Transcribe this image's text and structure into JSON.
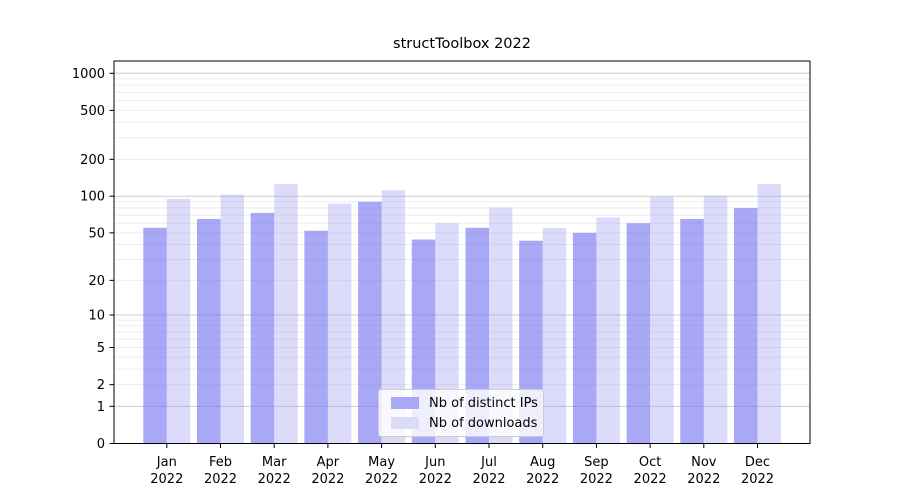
{
  "chart_data": {
    "type": "bar",
    "title": "structToolbox 2022",
    "categories": [
      "Jan",
      "Feb",
      "Mar",
      "Apr",
      "May",
      "Jun",
      "Jul",
      "Aug",
      "Sep",
      "Oct",
      "Nov",
      "Dec"
    ],
    "x_tick_second_line": "2022",
    "series": [
      {
        "name": "Nb of distinct IPs",
        "values": [
          55,
          65,
          73,
          52,
          90,
          44,
          55,
          43,
          50,
          60,
          65,
          80
        ],
        "color": "#a8a8f6",
        "fill": "rgba(115,115,240,0.62)"
      },
      {
        "name": "Nb of downloads",
        "values": [
          95,
          103,
          126,
          87,
          112,
          60,
          81,
          55,
          67,
          99,
          101,
          126
        ],
        "color": "#dcdcf9",
        "fill": "rgba(155,155,241,0.35)"
      }
    ],
    "yscale": "log1p",
    "yticks": [
      0,
      1,
      2,
      5,
      10,
      20,
      50,
      100,
      200,
      500,
      1000
    ],
    "ylim": [
      0,
      1000
    ],
    "grid": {
      "on": true,
      "major_color": "#cdcdcd",
      "minor_color": "#ededed"
    },
    "legend": {
      "position": "lower center"
    },
    "axis_color": "#000000",
    "text_color": "#000000"
  }
}
